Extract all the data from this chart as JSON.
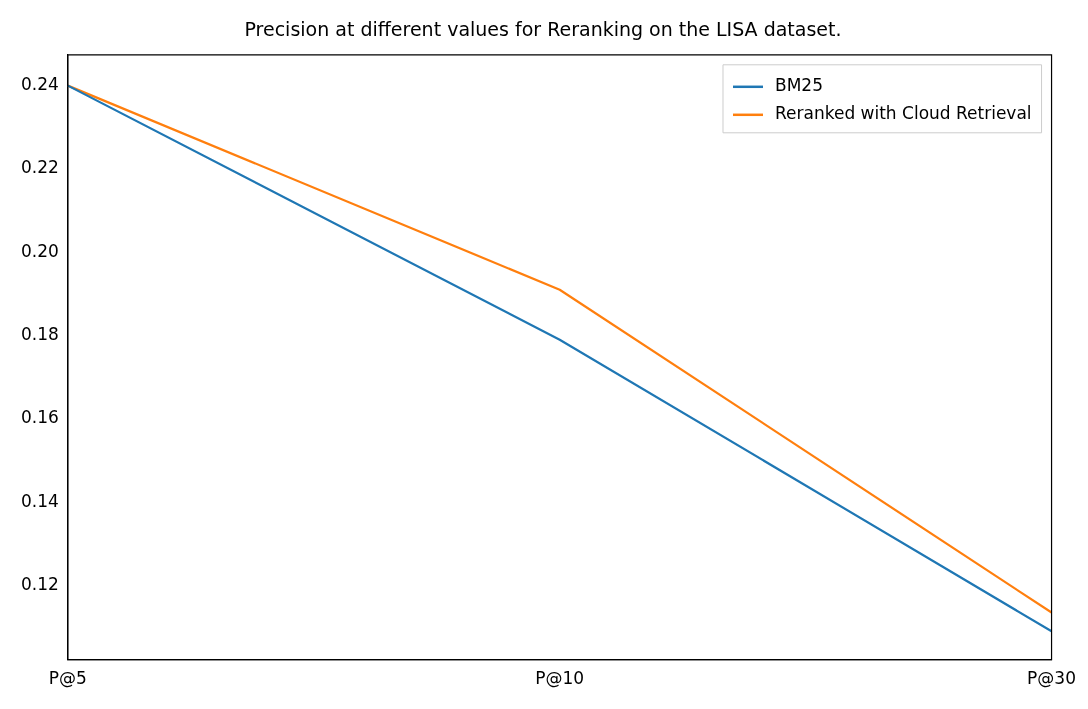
{
  "chart_data": {
    "type": "line",
    "title": "Precision at different values for Reranking on the LISA dataset.",
    "categories": [
      "P@5",
      "P@10",
      "P@30"
    ],
    "series": [
      {
        "name": "BM25",
        "color": "#1f77b4",
        "values": [
          0.24,
          0.179,
          0.109
        ]
      },
      {
        "name": "Reranked with Cloud Retrieval",
        "color": "#ff7f0e",
        "values": [
          0.24,
          0.191,
          0.1135
        ]
      }
    ],
    "ylim": [
      0.1022,
      0.2474
    ],
    "yticks": [
      {
        "value": 0.12,
        "label": "0.12"
      },
      {
        "value": 0.14,
        "label": "0.14"
      },
      {
        "value": 0.16,
        "label": "0.16"
      },
      {
        "value": 0.18,
        "label": "0.18"
      },
      {
        "value": 0.2,
        "label": "0.20"
      },
      {
        "value": 0.22,
        "label": "0.22"
      },
      {
        "value": 0.24,
        "label": "0.24"
      }
    ],
    "grid": false,
    "legend": "top right",
    "marker": "none",
    "line_style": "solid"
  }
}
